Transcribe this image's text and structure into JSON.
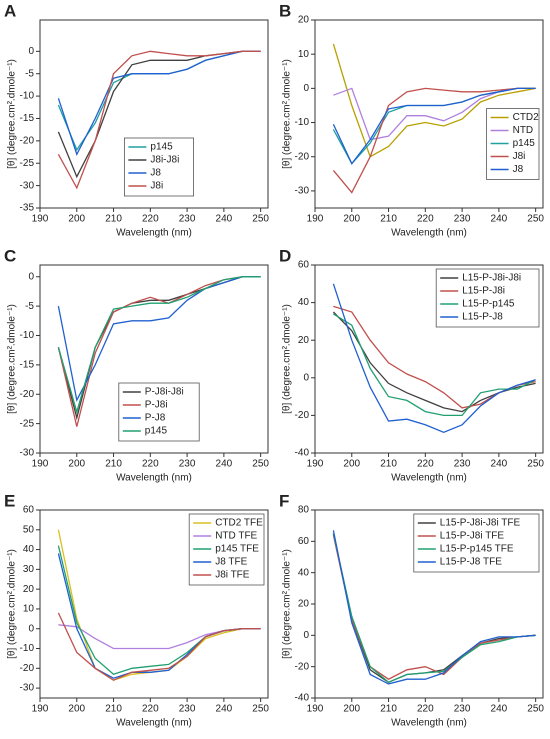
{
  "chart_data": [
    {
      "type": "line",
      "label": "A",
      "xlabel": "Wavelength (nm)",
      "ylabel": "[θ] (degree.cm².dmole⁻¹)",
      "x": [
        195,
        200,
        205,
        210,
        215,
        220,
        225,
        230,
        235,
        240,
        245,
        250
      ],
      "xlim": [
        190,
        252
      ],
      "xticks": [
        190,
        200,
        210,
        220,
        230,
        240,
        250
      ],
      "ylim": [
        -35,
        7
      ],
      "yticks": [
        -35,
        -30,
        -25,
        -20,
        -15,
        -10,
        -5,
        0
      ],
      "legend": "lower center",
      "series": [
        {
          "name": "p145",
          "color": "#20a0a0",
          "values": [
            -12,
            -22,
            -16,
            -7,
            -5,
            -5,
            -5,
            -4,
            -2,
            -1,
            0,
            0
          ]
        },
        {
          "name": "J8i-J8i",
          "color": "#404040",
          "values": [
            -18,
            -28,
            -20,
            -9,
            -3,
            -2,
            -2,
            -2,
            -1,
            -0.5,
            0,
            0
          ]
        },
        {
          "name": "J8",
          "color": "#2060d0",
          "values": [
            -10.5,
            -23,
            -15,
            -6,
            -5,
            -5,
            -5,
            -4,
            -2,
            -1,
            0,
            0
          ]
        },
        {
          "name": "J8i",
          "color": "#c0504d",
          "values": [
            -23,
            -30.5,
            -20,
            -5,
            -1,
            0,
            -0.5,
            -1,
            -1,
            -0.5,
            0,
            0
          ]
        }
      ]
    },
    {
      "type": "line",
      "label": "B",
      "xlabel": "Wavelength (nm)",
      "ylabel": "[θ] (degree.cm².dmole⁻¹)",
      "x": [
        195,
        200,
        205,
        210,
        215,
        220,
        225,
        230,
        235,
        240,
        245,
        250
      ],
      "xlim": [
        190,
        252
      ],
      "xticks": [
        190,
        200,
        210,
        220,
        230,
        240,
        250
      ],
      "ylim": [
        -35,
        20
      ],
      "yticks": [
        -30,
        -20,
        -10,
        0,
        10,
        20
      ],
      "legend": "center right",
      "series": [
        {
          "name": "CTD2",
          "color": "#b8a000",
          "values": [
            13,
            -5,
            -20,
            -17,
            -11,
            -10,
            -11,
            -9,
            -4,
            -2,
            -1,
            0
          ]
        },
        {
          "name": "NTD",
          "color": "#b080e0",
          "values": [
            -2,
            0,
            -15,
            -14,
            -8,
            -8,
            -9.5,
            -7,
            -3,
            -1,
            0,
            0
          ]
        },
        {
          "name": "p145",
          "color": "#20a0a0",
          "values": [
            -12,
            -22,
            -16,
            -7,
            -5,
            -5,
            -5,
            -4,
            -2,
            -1,
            0,
            0
          ]
        },
        {
          "name": "J8i",
          "color": "#c0504d",
          "values": [
            -24,
            -30.5,
            -20,
            -5,
            -1,
            0,
            -0.5,
            -1,
            -1,
            -0.5,
            0,
            0
          ]
        },
        {
          "name": "J8",
          "color": "#2060d0",
          "values": [
            -10.5,
            -22,
            -15,
            -6,
            -5,
            -5,
            -5,
            -4,
            -2,
            -1,
            0,
            0
          ]
        }
      ]
    },
    {
      "type": "line",
      "label": "C",
      "xlabel": "Wavelength (nm)",
      "ylabel": "[θ] (degree.cm².dmole⁻¹)",
      "x": [
        195,
        200,
        205,
        210,
        215,
        220,
        225,
        230,
        235,
        240,
        245,
        250
      ],
      "xlim": [
        190,
        252
      ],
      "xticks": [
        190,
        200,
        210,
        220,
        230,
        240,
        250
      ],
      "ylim": [
        -30,
        2
      ],
      "yticks": [
        -30,
        -25,
        -20,
        -15,
        -10,
        -5,
        0
      ],
      "legend": "lower center",
      "series": [
        {
          "name": "P-J8i-J8i",
          "color": "#404040",
          "values": [
            -12,
            -24,
            -12,
            -6,
            -4.5,
            -4,
            -4,
            -3,
            -2,
            -1,
            0,
            0
          ]
        },
        {
          "name": "P-J8i",
          "color": "#c0504d",
          "values": [
            -12,
            -25.5,
            -13,
            -6,
            -4.5,
            -3.5,
            -4.5,
            -3,
            -1.5,
            -0.5,
            0,
            0
          ]
        },
        {
          "name": "P-J8",
          "color": "#2060d0",
          "values": [
            -5,
            -21,
            -15,
            -8,
            -7.5,
            -7.5,
            -7,
            -4,
            -2,
            -1,
            0,
            0
          ]
        },
        {
          "name": "p145",
          "color": "#20a070",
          "values": [
            -12,
            -23,
            -12,
            -5.5,
            -5,
            -4.5,
            -4.5,
            -3.5,
            -2,
            -0.5,
            0,
            0
          ]
        }
      ]
    },
    {
      "type": "line",
      "label": "D",
      "xlabel": "Wavelength (nm)",
      "ylabel": "[θ] (degree.cm².dmole⁻¹)",
      "x": [
        195,
        200,
        205,
        210,
        215,
        220,
        225,
        230,
        235,
        240,
        245,
        250
      ],
      "xlim": [
        190,
        252
      ],
      "xticks": [
        190,
        200,
        210,
        220,
        230,
        240,
        250
      ],
      "ylim": [
        -40,
        60
      ],
      "yticks": [
        -40,
        -20,
        0,
        20,
        40,
        60
      ],
      "legend": "upper right",
      "series": [
        {
          "name": "L15-P-J8i-J8i",
          "color": "#404040",
          "values": [
            35,
            25,
            8,
            -3,
            -8,
            -12,
            -16,
            -18,
            -12,
            -8,
            -5,
            -3
          ]
        },
        {
          "name": "L15-P-J8i",
          "color": "#c0504d",
          "values": [
            38,
            35,
            20,
            8,
            2,
            -2,
            -8,
            -16,
            -14,
            -8,
            -4,
            -2
          ]
        },
        {
          "name": "L15-P-p145",
          "color": "#20a070",
          "values": [
            34,
            28,
            5,
            -10,
            -12,
            -18,
            -20,
            -20,
            -8,
            -6,
            -6,
            -1
          ]
        },
        {
          "name": "L15-P-J8",
          "color": "#2060d0",
          "values": [
            50,
            20,
            -5,
            -23,
            -22,
            -25,
            -29,
            -25,
            -15,
            -8,
            -4,
            -1
          ]
        }
      ]
    },
    {
      "type": "line",
      "label": "E",
      "xlabel": "Wavelength (nm)",
      "ylabel": "[θ] (degree.cm².dmole⁻¹)",
      "x": [
        195,
        200,
        205,
        210,
        215,
        220,
        225,
        230,
        235,
        240,
        245,
        250
      ],
      "xlim": [
        190,
        252
      ],
      "xticks": [
        190,
        200,
        210,
        220,
        230,
        240,
        250
      ],
      "ylim": [
        -35,
        60
      ],
      "yticks": [
        -30,
        -20,
        -10,
        0,
        10,
        20,
        30,
        40,
        50,
        60
      ],
      "legend": "upper right",
      "series": [
        {
          "name": "CTD2 TFE",
          "color": "#d8c020",
          "values": [
            50,
            5,
            -20,
            -26,
            -23,
            -22,
            -21,
            -14,
            -5,
            -2,
            0,
            0
          ]
        },
        {
          "name": "NTD TFE",
          "color": "#b080e0",
          "values": [
            2,
            1,
            -5,
            -10,
            -10,
            -10,
            -10,
            -7,
            -3,
            -1,
            0,
            0
          ]
        },
        {
          "name": "p145 TFE",
          "color": "#20a070",
          "values": [
            42,
            3,
            -15,
            -23,
            -20,
            -19,
            -18,
            -12,
            -4,
            -1,
            0,
            0
          ]
        },
        {
          "name": "J8 TFE",
          "color": "#2060d0",
          "values": [
            38,
            0,
            -20,
            -25,
            -22,
            -22,
            -21,
            -13,
            -4,
            -1,
            0,
            0
          ]
        },
        {
          "name": "J8i TFE",
          "color": "#c0504d",
          "values": [
            8,
            -12,
            -20,
            -26,
            -22,
            -21,
            -20,
            -14,
            -4,
            -1,
            0,
            0
          ]
        }
      ]
    },
    {
      "type": "line",
      "label": "F",
      "xlabel": "Wavelength (nm)",
      "ylabel": "[θ] (degree.cm².dmole⁻¹)",
      "x": [
        195,
        200,
        205,
        210,
        215,
        220,
        225,
        230,
        235,
        240,
        245,
        250
      ],
      "xlim": [
        190,
        252
      ],
      "xticks": [
        190,
        200,
        210,
        220,
        230,
        240,
        250
      ],
      "ylim": [
        -40,
        80
      ],
      "yticks": [
        -40,
        -20,
        0,
        20,
        40,
        60,
        80
      ],
      "legend": "upper right",
      "series": [
        {
          "name": "L15-P-J8i-J8i TFE",
          "color": "#404040",
          "values": [
            65,
            10,
            -22,
            -30,
            -25,
            -24,
            -22,
            -13,
            -5,
            -2,
            -1,
            0
          ]
        },
        {
          "name": "L15-P-J8i TFE",
          "color": "#c0504d",
          "values": [
            64,
            10,
            -20,
            -28,
            -22,
            -20,
            -25,
            -14,
            -5,
            -3,
            -1,
            0
          ]
        },
        {
          "name": "L15-P-p145 TFE",
          "color": "#20a070",
          "values": [
            65,
            12,
            -20,
            -30,
            -25,
            -24,
            -23,
            -14,
            -6,
            -4,
            -1,
            0
          ]
        },
        {
          "name": "L15-P-J8 TFE",
          "color": "#2060d0",
          "values": [
            67,
            8,
            -25,
            -31,
            -28,
            -28,
            -24,
            -13,
            -4,
            -1,
            -1,
            0
          ]
        }
      ]
    }
  ]
}
